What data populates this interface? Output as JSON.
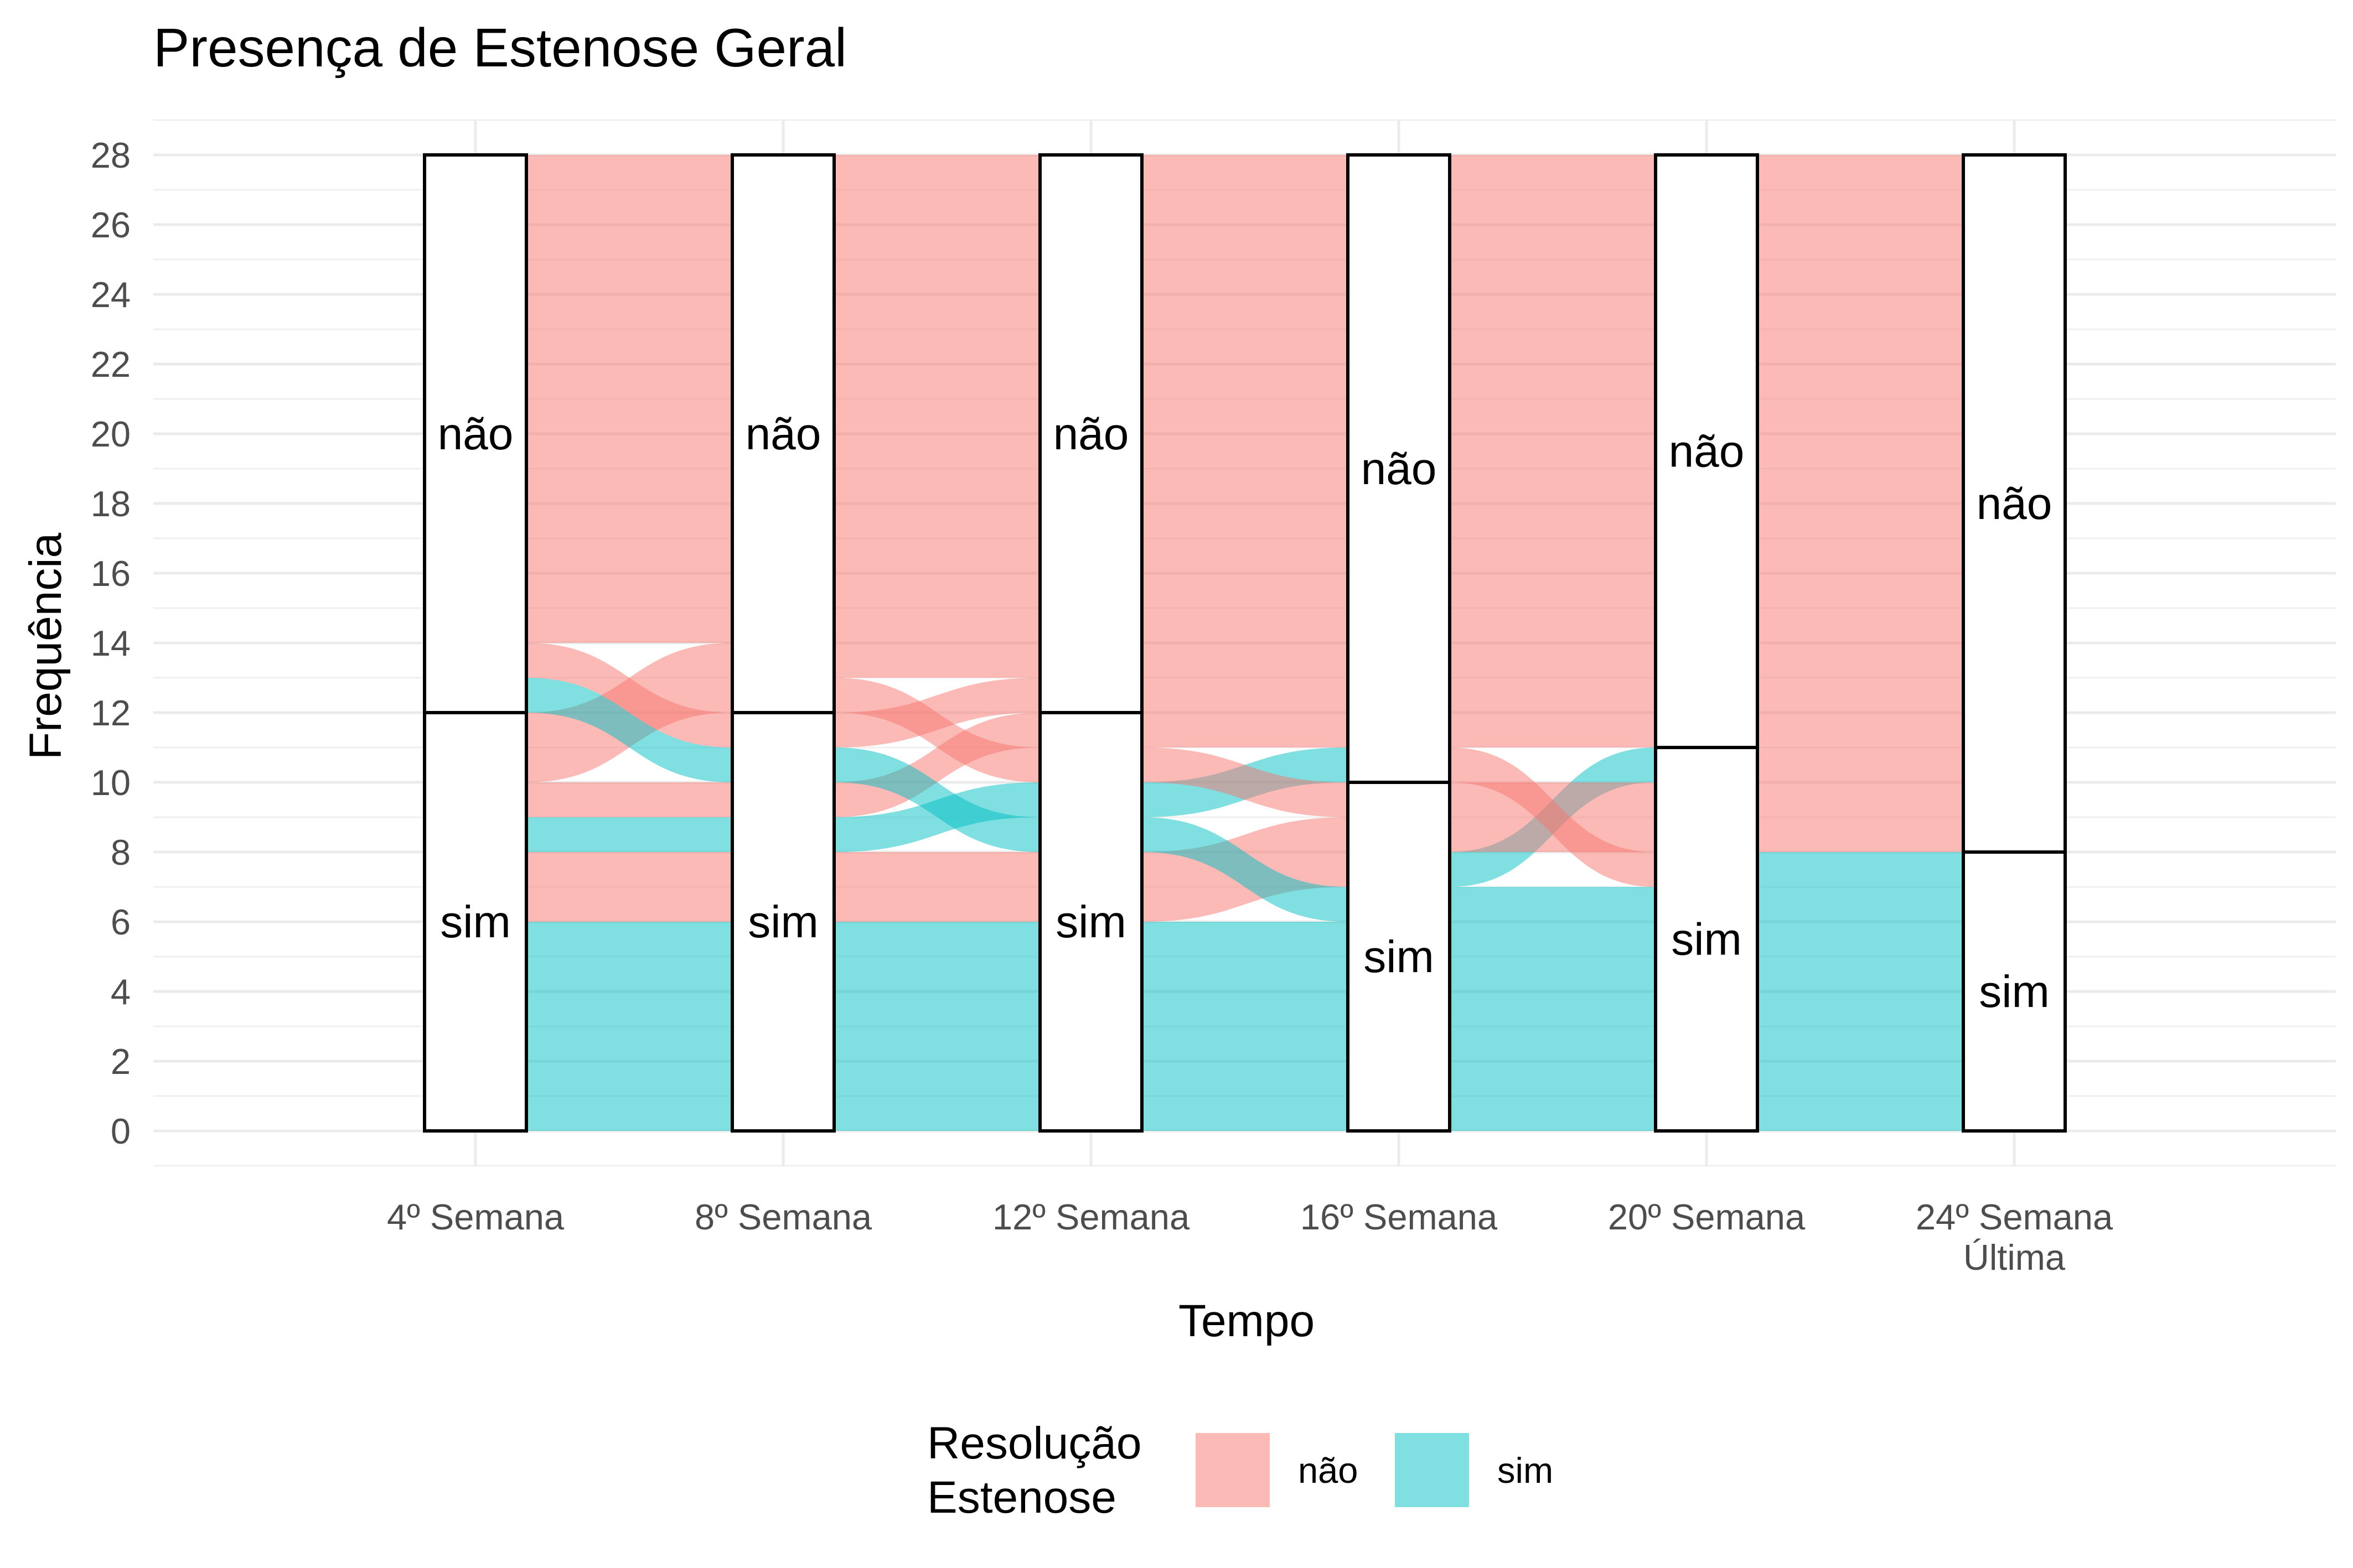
{
  "chart_data": {
    "type": "alluvial",
    "title": "Presença de Estenose Geral",
    "xlabel": "Tempo",
    "ylabel": "Frequência",
    "ylim": [
      0,
      28
    ],
    "yticks": [
      0,
      2,
      4,
      6,
      8,
      10,
      12,
      14,
      16,
      18,
      20,
      22,
      24,
      26,
      28
    ],
    "x": [
      "4º Semana",
      "8º Semana",
      "12º Semana",
      "16º Semana",
      "20º Semana",
      "24º Semana\nÚltima"
    ],
    "grid": true,
    "legend_position": "bottom",
    "legend": {
      "title": "Resolução\nEstenose",
      "entries": [
        {
          "label": "não",
          "color": "#F8766D"
        },
        {
          "label": "sim",
          "color": "#00BFC4"
        }
      ]
    },
    "strata": [
      [
        {
          "label": "não",
          "count": 16
        },
        {
          "label": "sim",
          "count": 12
        }
      ],
      [
        {
          "label": "não",
          "count": 16
        },
        {
          "label": "sim",
          "count": 12
        }
      ],
      [
        {
          "label": "não",
          "count": 16
        },
        {
          "label": "sim",
          "count": 12
        }
      ],
      [
        {
          "label": "não",
          "count": 18
        },
        {
          "label": "sim",
          "count": 10
        }
      ],
      [
        {
          "label": "não",
          "count": 17
        },
        {
          "label": "sim",
          "count": 11
        }
      ],
      [
        {
          "label": "não",
          "count": 20
        },
        {
          "label": "sim",
          "count": 8
        }
      ]
    ],
    "flows": [
      {
        "step": 0,
        "fill": "sim",
        "from": [
          0,
          6
        ],
        "to": [
          0,
          6
        ]
      },
      {
        "step": 0,
        "fill": "não",
        "from": [
          6,
          8
        ],
        "to": [
          6,
          8
        ]
      },
      {
        "step": 0,
        "fill": "sim",
        "from": [
          8,
          9
        ],
        "to": [
          8,
          9
        ]
      },
      {
        "step": 0,
        "fill": "não",
        "from": [
          9,
          10
        ],
        "to": [
          9,
          10
        ]
      },
      {
        "step": 0,
        "fill": "não",
        "from": [
          10,
          12
        ],
        "to": [
          12,
          14
        ]
      },
      {
        "step": 0,
        "fill": "sim",
        "from": [
          12,
          13
        ],
        "to": [
          10,
          11
        ]
      },
      {
        "step": 0,
        "fill": "não",
        "from": [
          13,
          14
        ],
        "to": [
          11,
          12
        ]
      },
      {
        "step": 0,
        "fill": "não",
        "from": [
          14,
          28
        ],
        "to": [
          14,
          28
        ]
      },
      {
        "step": 1,
        "fill": "sim",
        "from": [
          0,
          6
        ],
        "to": [
          0,
          6
        ]
      },
      {
        "step": 1,
        "fill": "não",
        "from": [
          6,
          8
        ],
        "to": [
          6,
          8
        ]
      },
      {
        "step": 1,
        "fill": "sim",
        "from": [
          8,
          9
        ],
        "to": [
          9,
          10
        ]
      },
      {
        "step": 1,
        "fill": "não",
        "from": [
          9,
          10
        ],
        "to": [
          11,
          12
        ]
      },
      {
        "step": 1,
        "fill": "sim",
        "from": [
          10,
          11
        ],
        "to": [
          8,
          9
        ]
      },
      {
        "step": 1,
        "fill": "não",
        "from": [
          11,
          12
        ],
        "to": [
          12,
          13
        ]
      },
      {
        "step": 1,
        "fill": "não",
        "from": [
          12,
          13
        ],
        "to": [
          10,
          11
        ]
      },
      {
        "step": 1,
        "fill": "não",
        "from": [
          13,
          14
        ],
        "to": [
          13,
          14
        ]
      },
      {
        "step": 1,
        "fill": "não",
        "from": [
          14,
          15
        ],
        "to": [
          14,
          15
        ]
      },
      {
        "step": 1,
        "fill": "não",
        "from": [
          15,
          28
        ],
        "to": [
          15,
          28
        ]
      },
      {
        "step": 2,
        "fill": "sim",
        "from": [
          0,
          6
        ],
        "to": [
          0,
          6
        ]
      },
      {
        "step": 2,
        "fill": "não",
        "from": [
          6,
          8
        ],
        "to": [
          7,
          9
        ]
      },
      {
        "step": 2,
        "fill": "sim",
        "from": [
          8,
          9
        ],
        "to": [
          6,
          7
        ]
      },
      {
        "step": 2,
        "fill": "sim",
        "from": [
          9,
          10
        ],
        "to": [
          10,
          11
        ]
      },
      {
        "step": 2,
        "fill": "não",
        "from": [
          10,
          11
        ],
        "to": [
          9,
          10
        ]
      },
      {
        "step": 2,
        "fill": "não",
        "from": [
          11,
          12
        ],
        "to": [
          11,
          12
        ]
      },
      {
        "step": 2,
        "fill": "não",
        "from": [
          12,
          28
        ],
        "to": [
          12,
          28
        ]
      },
      {
        "step": 3,
        "fill": "sim",
        "from": [
          0,
          7
        ],
        "to": [
          0,
          7
        ]
      },
      {
        "step": 3,
        "fill": "sim",
        "from": [
          7,
          8
        ],
        "to": [
          10,
          11
        ]
      },
      {
        "step": 3,
        "fill": "não",
        "from": [
          8,
          10
        ],
        "to": [
          8,
          10
        ]
      },
      {
        "step": 3,
        "fill": "não",
        "from": [
          10,
          11
        ],
        "to": [
          7,
          8
        ]
      },
      {
        "step": 3,
        "fill": "não",
        "from": [
          11,
          28
        ],
        "to": [
          11,
          28
        ]
      },
      {
        "step": 4,
        "fill": "sim",
        "from": [
          0,
          8
        ],
        "to": [
          0,
          8
        ]
      },
      {
        "step": 4,
        "fill": "não",
        "from": [
          8,
          28
        ],
        "to": [
          8,
          28
        ]
      }
    ]
  }
}
